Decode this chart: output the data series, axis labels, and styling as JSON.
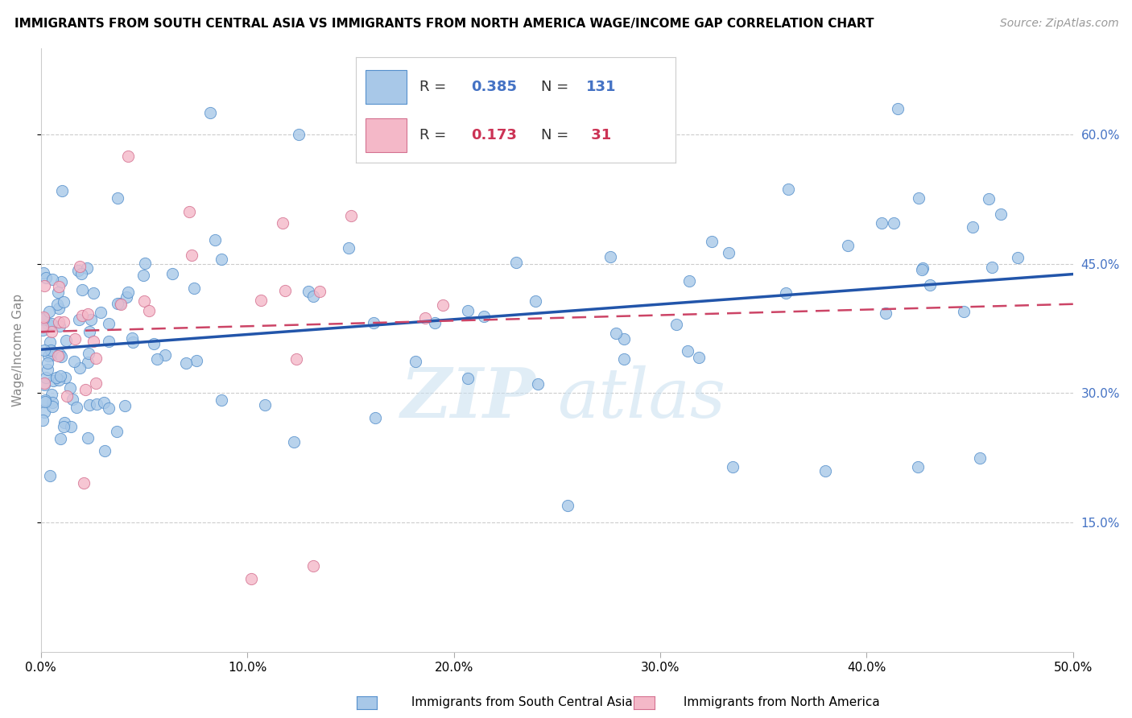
{
  "title": "IMMIGRANTS FROM SOUTH CENTRAL ASIA VS IMMIGRANTS FROM NORTH AMERICA WAGE/INCOME GAP CORRELATION CHART",
  "source": "Source: ZipAtlas.com",
  "ylabel": "Wage/Income Gap",
  "xlim": [
    0.0,
    0.5
  ],
  "ylim": [
    0.0,
    0.7
  ],
  "xtick_vals": [
    0.0,
    0.1,
    0.2,
    0.3,
    0.4,
    0.5
  ],
  "xtick_labels": [
    "0.0%",
    "10.0%",
    "20.0%",
    "30.0%",
    "40.0%",
    "50.0%"
  ],
  "ytick_vals": [
    0.15,
    0.3,
    0.45,
    0.6
  ],
  "ytick_labels": [
    "15.0%",
    "30.0%",
    "45.0%",
    "60.0%"
  ],
  "blue_face": "#a8c8e8",
  "blue_edge": "#5590cc",
  "pink_face": "#f4b8c8",
  "pink_edge": "#d47090",
  "line_blue_color": "#2255aa",
  "line_pink_color": "#cc4466",
  "right_tick_color": "#4472c4",
  "watermark_zip": "ZIP",
  "watermark_atlas": "atlas",
  "legend_r_blue": "0.385",
  "legend_n_blue": "131",
  "legend_r_pink": "0.173",
  "legend_n_pink": "31",
  "legend_label_blue": "Immigrants from South Central Asia",
  "legend_label_pink": "Immigrants from North America",
  "n_blue": 131,
  "n_pink": 31,
  "R_blue": 0.385,
  "R_pink": 0.173
}
